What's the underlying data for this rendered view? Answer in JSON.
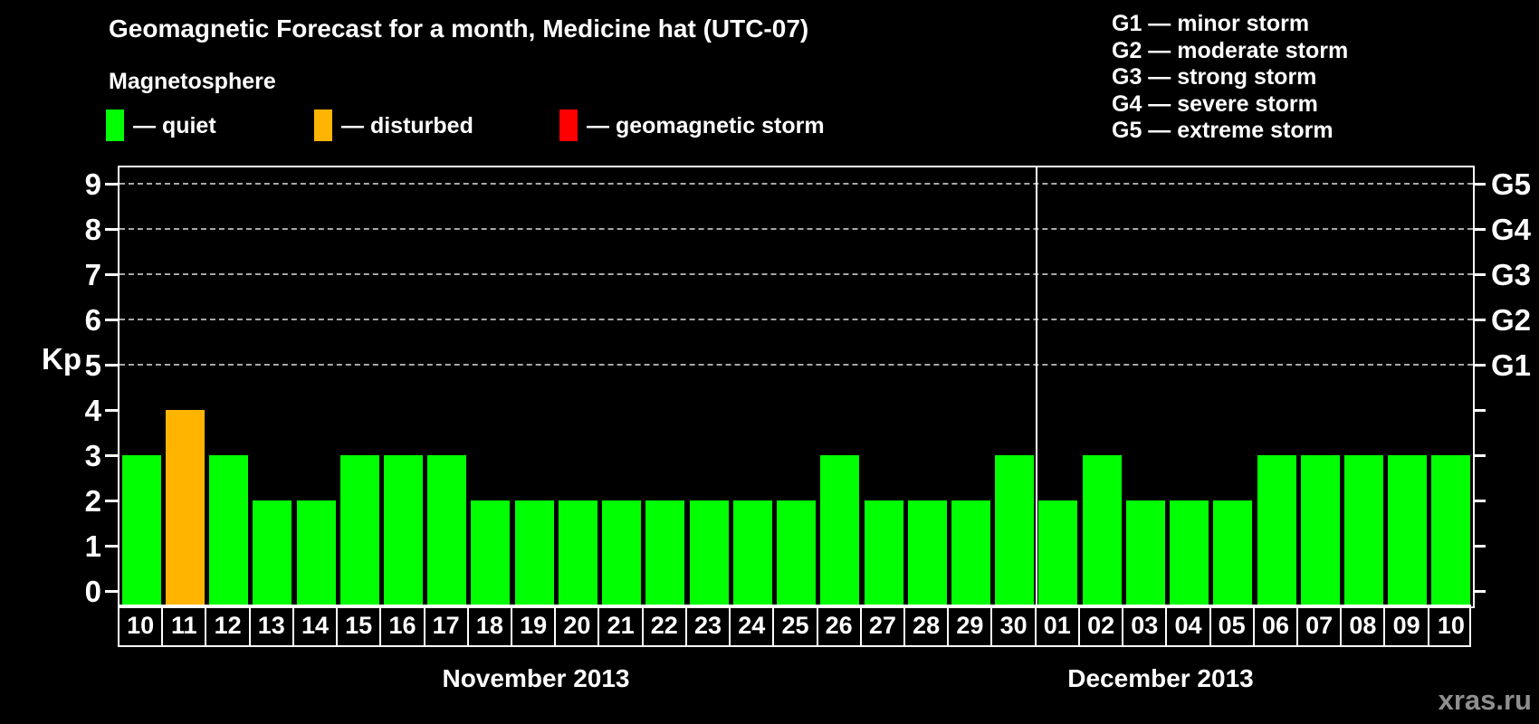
{
  "title": "Geomagnetic Forecast for a month, Medicine hat (UTC-07)",
  "magnetosphere_legend": {
    "heading": "Magnetosphere",
    "items": [
      {
        "label": "— quiet",
        "status": "quiet",
        "color": "#00ff00"
      },
      {
        "label": "— disturbed",
        "status": "disturbed",
        "color": "#ffb400"
      },
      {
        "label": "— geomagnetic storm",
        "status": "storm",
        "color": "#ff0000"
      }
    ]
  },
  "g_scale_legend": [
    "G1 — minor storm",
    "G2 — moderate storm",
    "G3 — strong storm",
    "G4 — severe storm",
    "G5 — extreme storm"
  ],
  "watermark": "xras.ru",
  "chart_data": {
    "type": "bar",
    "title": "Geomagnetic Forecast for a month, Medicine hat (UTC-07)",
    "ylabel": "Kp",
    "ylim": [
      0,
      9
    ],
    "y_ticks": [
      0,
      1,
      2,
      3,
      4,
      5,
      6,
      7,
      8,
      9
    ],
    "gridline_levels": [
      5,
      6,
      7,
      8,
      9
    ],
    "right_axis_labels": [
      {
        "level": 5,
        "label": "G1"
      },
      {
        "level": 6,
        "label": "G2"
      },
      {
        "level": 7,
        "label": "G3"
      },
      {
        "level": 8,
        "label": "G4"
      },
      {
        "level": 9,
        "label": "G5"
      }
    ],
    "status_colors": {
      "quiet": "#00ff00",
      "disturbed": "#ffb400",
      "storm": "#ff0000"
    },
    "months": [
      {
        "label": "November 2013",
        "bars": [
          {
            "date": "10",
            "kp": 3,
            "status": "quiet"
          },
          {
            "date": "11",
            "kp": 4,
            "status": "disturbed"
          },
          {
            "date": "12",
            "kp": 3,
            "status": "quiet"
          },
          {
            "date": "13",
            "kp": 2,
            "status": "quiet"
          },
          {
            "date": "14",
            "kp": 2,
            "status": "quiet"
          },
          {
            "date": "15",
            "kp": 3,
            "status": "quiet"
          },
          {
            "date": "16",
            "kp": 3,
            "status": "quiet"
          },
          {
            "date": "17",
            "kp": 3,
            "status": "quiet"
          },
          {
            "date": "18",
            "kp": 2,
            "status": "quiet"
          },
          {
            "date": "19",
            "kp": 2,
            "status": "quiet"
          },
          {
            "date": "20",
            "kp": 2,
            "status": "quiet"
          },
          {
            "date": "21",
            "kp": 2,
            "status": "quiet"
          },
          {
            "date": "22",
            "kp": 2,
            "status": "quiet"
          },
          {
            "date": "23",
            "kp": 2,
            "status": "quiet"
          },
          {
            "date": "24",
            "kp": 2,
            "status": "quiet"
          },
          {
            "date": "25",
            "kp": 2,
            "status": "quiet"
          },
          {
            "date": "26",
            "kp": 3,
            "status": "quiet"
          },
          {
            "date": "27",
            "kp": 2,
            "status": "quiet"
          },
          {
            "date": "28",
            "kp": 2,
            "status": "quiet"
          },
          {
            "date": "29",
            "kp": 2,
            "status": "quiet"
          },
          {
            "date": "30",
            "kp": 3,
            "status": "quiet"
          }
        ]
      },
      {
        "label": "December 2013",
        "bars": [
          {
            "date": "01",
            "kp": 2,
            "status": "quiet"
          },
          {
            "date": "02",
            "kp": 3,
            "status": "quiet"
          },
          {
            "date": "03",
            "kp": 2,
            "status": "quiet"
          },
          {
            "date": "04",
            "kp": 2,
            "status": "quiet"
          },
          {
            "date": "05",
            "kp": 2,
            "status": "quiet"
          },
          {
            "date": "06",
            "kp": 3,
            "status": "quiet"
          },
          {
            "date": "07",
            "kp": 3,
            "status": "quiet"
          },
          {
            "date": "08",
            "kp": 3,
            "status": "quiet"
          },
          {
            "date": "09",
            "kp": 3,
            "status": "quiet"
          },
          {
            "date": "10",
            "kp": 3,
            "status": "quiet"
          }
        ]
      }
    ]
  }
}
